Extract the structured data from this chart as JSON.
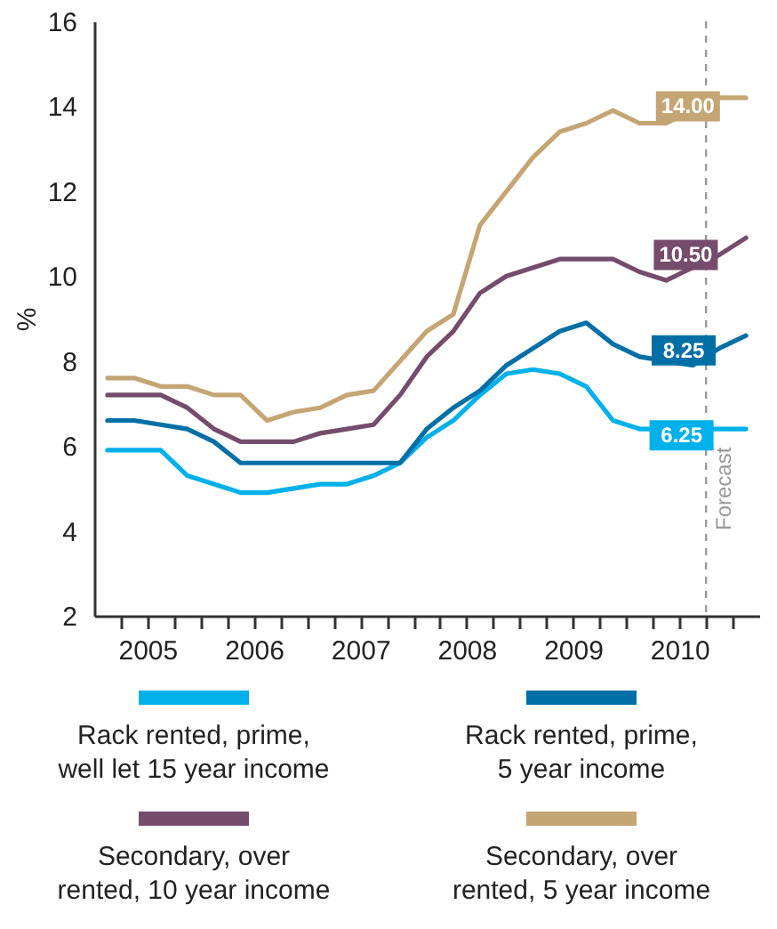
{
  "chart_data": {
    "type": "line",
    "ylabel": "%",
    "legend": "bottom",
    "grid": false,
    "marker": "none",
    "line_style": "solid",
    "x": [
      2005.125,
      2005.375,
      2005.625,
      2005.875,
      2006.125,
      2006.375,
      2006.625,
      2006.875,
      2007.125,
      2007.375,
      2007.625,
      2007.875,
      2008.125,
      2008.375,
      2008.625,
      2008.875,
      2009.125,
      2009.375,
      2009.625,
      2009.875,
      2010.125,
      2010.375,
      2010.625,
      2010.875,
      2011.125
    ],
    "xlim": [
      2005,
      2011.25
    ],
    "xticks": [
      {
        "value": 2005.25,
        "label": null
      },
      {
        "value": 2005.5,
        "label": "2005"
      },
      {
        "value": 2005.75,
        "label": null
      },
      {
        "value": 2006,
        "label": null
      },
      {
        "value": 2006.25,
        "label": null
      },
      {
        "value": 2006.5,
        "label": "2006"
      },
      {
        "value": 2006.75,
        "label": null
      },
      {
        "value": 2007,
        "label": null
      },
      {
        "value": 2007.25,
        "label": null
      },
      {
        "value": 2007.5,
        "label": "2007"
      },
      {
        "value": 2007.75,
        "label": null
      },
      {
        "value": 2008,
        "label": null
      },
      {
        "value": 2008.25,
        "label": null
      },
      {
        "value": 2008.5,
        "label": "2008"
      },
      {
        "value": 2008.75,
        "label": null
      },
      {
        "value": 2009,
        "label": null
      },
      {
        "value": 2009.25,
        "label": null
      },
      {
        "value": 2009.5,
        "label": "2009"
      },
      {
        "value": 2009.75,
        "label": null
      },
      {
        "value": 2010,
        "label": null
      },
      {
        "value": 2010.25,
        "label": null
      },
      {
        "value": 2010.5,
        "label": "2010"
      },
      {
        "value": 2010.75,
        "label": null
      },
      {
        "value": 2011,
        "label": null
      }
    ],
    "ylim": [
      2,
      16
    ],
    "yticks": [
      2,
      4,
      6,
      8,
      10,
      12,
      14,
      16
    ],
    "series": [
      {
        "name": "Rack rented, prime, well let 15 year income",
        "color": "#00b0ea",
        "values": [
          5.9,
          5.9,
          5.9,
          5.3,
          5.1,
          4.9,
          4.9,
          5.0,
          5.1,
          5.1,
          5.3,
          5.6,
          6.2,
          6.6,
          7.2,
          7.7,
          7.8,
          7.7,
          7.4,
          6.6,
          6.4,
          null,
          null,
          6.4,
          6.4
        ]
      },
      {
        "name": "Rack rented, prime, 5 year income",
        "color": "#006fa6",
        "values": [
          6.6,
          6.6,
          6.5,
          6.4,
          6.1,
          5.6,
          5.6,
          5.6,
          5.6,
          5.6,
          5.6,
          5.6,
          6.4,
          6.9,
          7.3,
          7.9,
          8.3,
          8.7,
          8.9,
          8.4,
          8.1,
          null,
          7.9,
          8.3,
          8.6
        ]
      },
      {
        "name": "Secondary, over rented, 10 year income",
        "color": "#754c6b",
        "values": [
          7.2,
          7.2,
          7.2,
          6.9,
          6.4,
          6.1,
          6.1,
          6.1,
          6.3,
          6.4,
          6.5,
          7.2,
          8.1,
          8.7,
          9.6,
          10.0,
          10.2,
          10.4,
          10.4,
          10.4,
          10.1,
          9.9,
          10.2,
          10.5,
          10.9
        ]
      },
      {
        "name": "Secondary, over rented, 5 year income",
        "color": "#c4a574",
        "values": [
          7.6,
          7.6,
          7.4,
          7.4,
          7.2,
          7.2,
          6.6,
          6.8,
          6.9,
          7.2,
          7.3,
          8.0,
          8.7,
          9.1,
          11.2,
          12.0,
          12.8,
          13.4,
          13.6,
          13.9,
          13.6,
          13.6,
          null,
          14.2,
          14.2
        ]
      }
    ],
    "annotations": [
      {
        "text": "6.25",
        "x": 2010.52,
        "y": 6.25
      },
      {
        "text": "8.25",
        "x": 2010.54,
        "y": 8.25
      },
      {
        "text": "10.50",
        "x": 2010.56,
        "y": 10.5
      },
      {
        "text": "14.00",
        "x": 2010.58,
        "y": 14
      }
    ],
    "ref_lines": [
      {
        "axis": "x",
        "value": 2010.75,
        "label": "Forecast",
        "color": "#999999",
        "line_style": "dashed"
      }
    ]
  }
}
